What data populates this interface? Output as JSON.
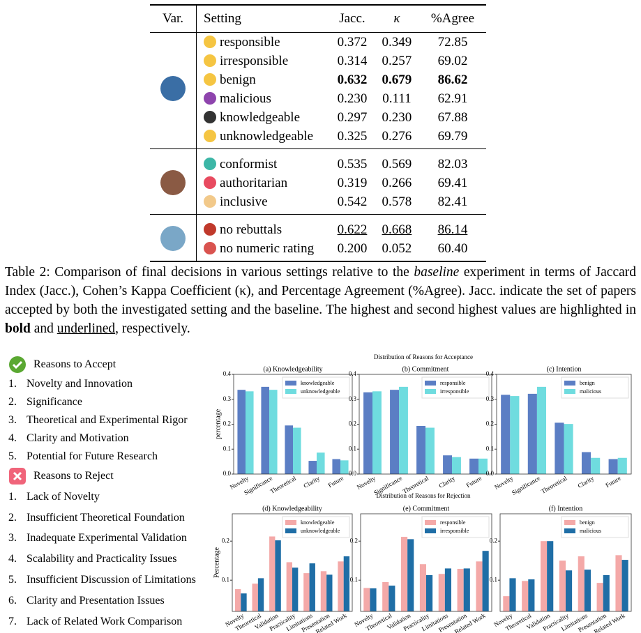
{
  "table": {
    "columns": [
      "Var.",
      "Setting",
      "Jacc.",
      "κ",
      "%Agree"
    ],
    "groups": [
      {
        "rows": [
          {
            "setting": "responsible",
            "values": [
              "0.372",
              "0.349",
              "72.85"
            ]
          },
          {
            "setting": "irresponsible",
            "values": [
              "0.314",
              "0.257",
              "69.02"
            ]
          },
          {
            "setting": "benign",
            "values": [
              "0.632",
              "0.679",
              "86.62"
            ],
            "emphasis": "bold"
          },
          {
            "setting": "malicious",
            "values": [
              "0.230",
              "0.111",
              "62.91"
            ]
          },
          {
            "setting": "knowledgeable",
            "values": [
              "0.297",
              "0.230",
              "67.88"
            ]
          },
          {
            "setting": "unknowledgeable",
            "values": [
              "0.325",
              "0.276",
              "69.79"
            ]
          }
        ]
      },
      {
        "rows": [
          {
            "setting": "conformist",
            "values": [
              "0.535",
              "0.569",
              "82.03"
            ]
          },
          {
            "setting": "authoritarian",
            "values": [
              "0.319",
              "0.266",
              "69.41"
            ]
          },
          {
            "setting": "inclusive",
            "values": [
              "0.542",
              "0.578",
              "82.41"
            ]
          }
        ]
      },
      {
        "rows": [
          {
            "setting": "no rebuttals",
            "values": [
              "0.622",
              "0.668",
              "86.14"
            ],
            "emphasis": "underline"
          },
          {
            "setting": "no numeric rating",
            "values": [
              "0.200",
              "0.052",
              "60.40"
            ]
          }
        ]
      }
    ]
  },
  "caption": {
    "parts": [
      {
        "text": "Table 2: Comparison of final decisions in various settings relative to the "
      },
      {
        "text": "baseline",
        "style": "italic"
      },
      {
        "text": " experiment in terms of Jaccard Index (Jacc.), Cohen’s Kappa Coefficient (κ), and Percentage Agreement (%Agree). Jacc. indicate the set of papers accepted by both the investigated setting and the baseline. The highest and second highest values are highlighted in "
      },
      {
        "text": "bold",
        "style": "bold"
      },
      {
        "text": " and "
      },
      {
        "text": "underlined",
        "style": "underline"
      },
      {
        "text": ", respectively."
      }
    ]
  },
  "accept": {
    "title": "Reasons to Accept",
    "items": [
      {
        "number": "1.",
        "text": "Novelty and Innovation"
      },
      {
        "number": "2.",
        "text": "Significance"
      },
      {
        "number": "3.",
        "text": "Theoretical and Experimental Rigor"
      },
      {
        "number": "4.",
        "text": "Clarity and Motivation"
      },
      {
        "number": "5.",
        "text": "Potential for Future Research"
      }
    ]
  },
  "reject": {
    "title": "Reasons to Reject",
    "items": [
      {
        "number": "1.",
        "text": "Lack of Novelty"
      },
      {
        "number": "2.",
        "text": "Insufficient Theoretical Foundation"
      },
      {
        "number": "3.",
        "text": "Inadequate Experimental Validation"
      },
      {
        "number": "4.",
        "text": "Scalability and Practicality Issues"
      },
      {
        "number": "5.",
        "text": "Insufficient Discussion of Limitations"
      },
      {
        "number": "6.",
        "text": "Clarity and Presentation Issues"
      },
      {
        "number": "7.",
        "text": "Lack of Related Work Comparison"
      }
    ]
  },
  "figure_titles": [
    "Distribution of Reasons for Acceptance",
    "Distribution of Reasons for Rejection"
  ],
  "chart_data": [
    {
      "type": "bar",
      "title": "(a) Knowledgeability",
      "ylabel": "percentage",
      "legend": "upper right",
      "categories": [
        "Novelty",
        "Significance",
        "Theoretical",
        "Clarity",
        "Future"
      ],
      "series": [
        {
          "name": "knowledgeable",
          "color": "#5b7ec4",
          "values": [
            0.338,
            0.35,
            0.195,
            0.053,
            0.06
          ]
        },
        {
          "name": "unknowledgeable",
          "color": "#6fdcdf",
          "values": [
            0.332,
            0.338,
            0.186,
            0.086,
            0.055
          ]
        }
      ],
      "ylim": [
        0,
        0.4
      ],
      "yticks": [
        {
          "value": 0,
          "label": "0.0"
        },
        0.1,
        0.2,
        0.3,
        0.4
      ]
    },
    {
      "type": "bar",
      "title": "(b) Commitment",
      "legend": "upper right",
      "categories": [
        "Novelty",
        "Significance",
        "Theoretical",
        "Clarity",
        "Future"
      ],
      "series": [
        {
          "name": "responsible",
          "color": "#5b7ec4",
          "values": [
            0.328,
            0.338,
            0.193,
            0.075,
            0.062
          ]
        },
        {
          "name": "irresponsible",
          "color": "#6fdcdf",
          "values": [
            0.332,
            0.35,
            0.186,
            0.068,
            0.062
          ]
        }
      ],
      "ylim": [
        0,
        0.4
      ],
      "yticks": [
        {
          "value": 0,
          "label": "0.0"
        },
        0.1,
        0.2,
        0.3,
        0.4
      ]
    },
    {
      "type": "bar",
      "title": "(c) Intention",
      "legend": "upper right",
      "categories": [
        "Novelty",
        "Significance",
        "Theoretical",
        "Clarity",
        "Future"
      ],
      "series": [
        {
          "name": "benign",
          "color": "#5b7ec4",
          "values": [
            0.318,
            0.322,
            0.206,
            0.088,
            0.06
          ]
        },
        {
          "name": "malicious",
          "color": "#6fdcdf",
          "values": [
            0.313,
            0.35,
            0.201,
            0.065,
            0.065
          ]
        }
      ],
      "ylim": [
        0,
        0.4
      ],
      "yticks": [
        {
          "value": 0,
          "label": "0.0"
        },
        0.1,
        0.2,
        0.3,
        0.4
      ]
    },
    {
      "type": "bar",
      "title": "(d) Knowledgeability",
      "ylabel": "Percentage",
      "legend": "upper right",
      "categories": [
        "Novelty",
        "Theoretical",
        "Validation",
        "Practicality",
        "Limitations",
        "Presentation",
        "Related Work"
      ],
      "series": [
        {
          "name": "knowledgeable",
          "color": "#f4a9a8",
          "values": [
            0.077,
            0.091,
            0.212,
            0.146,
            0.118,
            0.123,
            0.148
          ]
        },
        {
          "name": "unknowledgeable",
          "color": "#1f6ea6",
          "values": [
            0.066,
            0.105,
            0.202,
            0.132,
            0.143,
            0.114,
            0.161
          ]
        }
      ],
      "ylim": [
        0.02,
        0.27
      ],
      "yticks": [
        0.1,
        0.2
      ]
    },
    {
      "type": "bar",
      "title": "(e) Commitment",
      "legend": "upper right",
      "categories": [
        "Novelty",
        "Theoretical",
        "Validation",
        "Practicality",
        "Limitations",
        "Presentation",
        "Related Work"
      ],
      "series": [
        {
          "name": "responsible",
          "color": "#f4a9a8",
          "values": [
            0.08,
            0.095,
            0.211,
            0.141,
            0.116,
            0.129,
            0.148
          ]
        },
        {
          "name": "irresponsible",
          "color": "#1f6ea6",
          "values": [
            0.079,
            0.086,
            0.205,
            0.113,
            0.13,
            0.13,
            0.175
          ]
        }
      ],
      "ylim": [
        0.02,
        0.27
      ],
      "yticks": [
        0.1,
        0.2
      ]
    },
    {
      "type": "bar",
      "title": "(f) Intention",
      "legend": "upper right",
      "categories": [
        "Novelty",
        "Theoretical",
        "Validation",
        "Practicality",
        "Limitations",
        "Presentation",
        "Related Work"
      ],
      "series": [
        {
          "name": "benign",
          "color": "#f4a9a8",
          "values": [
            0.059,
            0.098,
            0.2,
            0.15,
            0.161,
            0.093,
            0.164
          ]
        },
        {
          "name": "malicious",
          "color": "#1f6ea6",
          "values": [
            0.105,
            0.102,
            0.2,
            0.125,
            0.127,
            0.113,
            0.152
          ]
        }
      ],
      "ylim": [
        0.02,
        0.27
      ],
      "yticks": [
        0.1,
        0.2
      ]
    }
  ]
}
